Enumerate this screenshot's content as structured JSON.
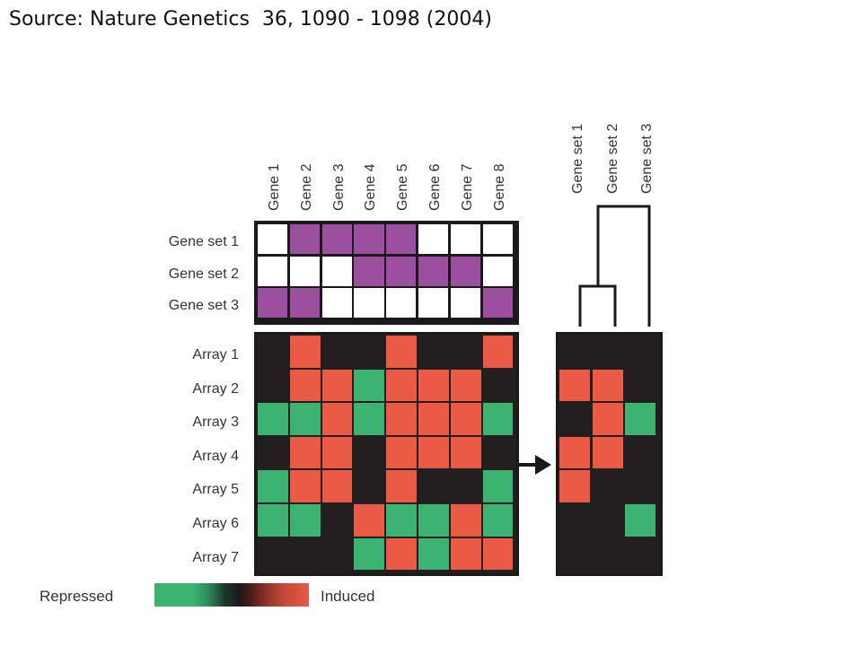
{
  "source_text": "Source: Nature Genetics  36, 1090 - 1098 (2004)",
  "gene_labels": [
    "Gene 1",
    "Gene 2",
    "Gene 3",
    "Gene 4",
    "Gene 5",
    "Gene 6",
    "Gene 7",
    "Gene 8"
  ],
  "geneset_labels": [
    "Gene set 1",
    "Gene set 2",
    "Gene set 3"
  ],
  "array_labels": [
    "Array 1",
    "Array 2",
    "Array 3",
    "Array 4",
    "Array 5",
    "Array 6",
    "Array 7"
  ],
  "colors": {
    "membership": "#9b4f9e",
    "empty": "#ffffff",
    "background": "#231f20",
    "induced": "#ea5a45",
    "repressed": "#3cb370"
  },
  "geneset_membership": [
    [
      0,
      1,
      1,
      1,
      1,
      0,
      0,
      0
    ],
    [
      0,
      0,
      0,
      1,
      1,
      1,
      1,
      0
    ],
    [
      1,
      1,
      0,
      0,
      0,
      0,
      0,
      1
    ]
  ],
  "array_expression": [
    [
      "n",
      "r",
      "n",
      "n",
      "r",
      "n",
      "n",
      "r"
    ],
    [
      "n",
      "r",
      "r",
      "g",
      "r",
      "r",
      "r",
      "n"
    ],
    [
      "g",
      "g",
      "r",
      "g",
      "r",
      "r",
      "r",
      "g"
    ],
    [
      "n",
      "r",
      "r",
      "n",
      "r",
      "r",
      "r",
      "n"
    ],
    [
      "g",
      "r",
      "r",
      "n",
      "r",
      "n",
      "n",
      "g"
    ],
    [
      "g",
      "g",
      "n",
      "r",
      "g",
      "g",
      "r",
      "g"
    ],
    [
      "n",
      "n",
      "n",
      "g",
      "r",
      "g",
      "r",
      "r"
    ]
  ],
  "geneset_scores": [
    [
      "n",
      "n",
      "n"
    ],
    [
      "r",
      "r",
      "n"
    ],
    [
      "n",
      "r",
      "g"
    ],
    [
      "r",
      "r",
      "n"
    ],
    [
      "r",
      "n",
      "n"
    ],
    [
      "n",
      "n",
      "g"
    ],
    [
      "n",
      "n",
      "n"
    ]
  ],
  "legend": {
    "repressed_label": "Repressed",
    "induced_label": "Induced"
  }
}
